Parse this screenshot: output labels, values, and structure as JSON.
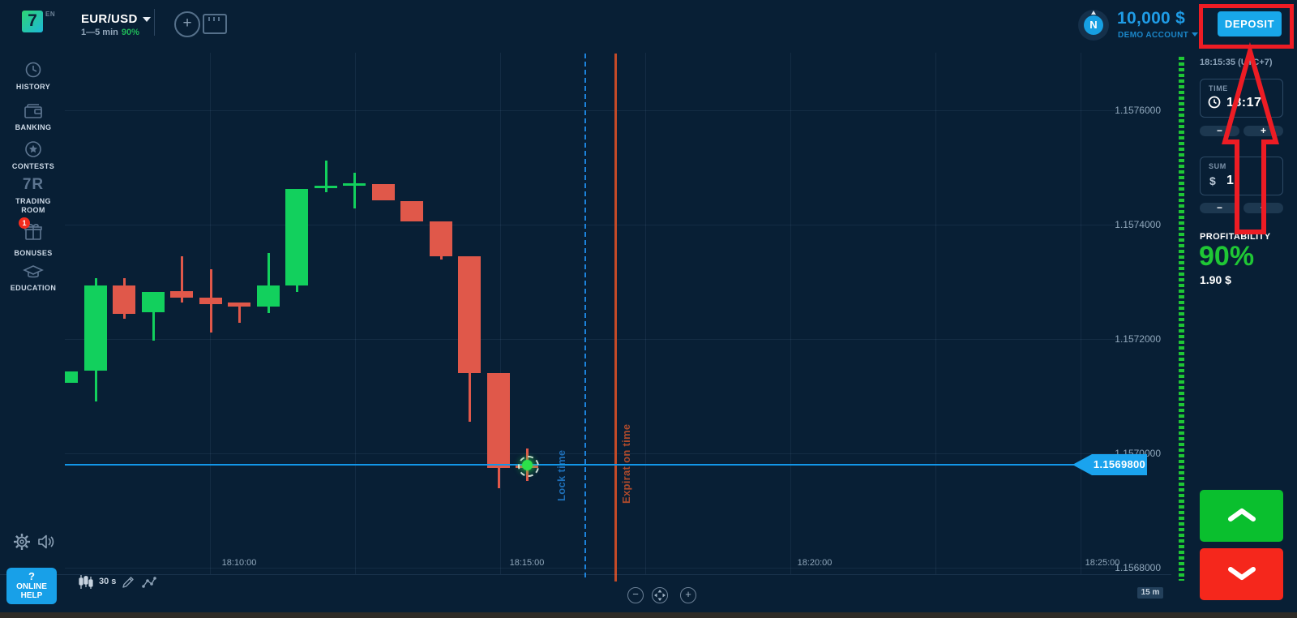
{
  "header": {
    "logo_letter": "7",
    "lang": "EN",
    "asset": {
      "pair": "EUR/USD",
      "duration": "1—5 min",
      "payout": "90%"
    },
    "balance": {
      "amount": "10,000 $",
      "account_type": "DEMO ACCOUNT",
      "avatar_letter": "N"
    },
    "deposit_label": "DEPOSIT"
  },
  "sidebar": {
    "items": [
      {
        "label": "HISTORY",
        "icon": "history-icon"
      },
      {
        "label": "BANKING",
        "icon": "wallet-icon"
      },
      {
        "label": "CONTESTS",
        "icon": "star-icon"
      },
      {
        "label": "TRADING ROOM",
        "icon": "7r-icon",
        "icon_text": "7R"
      },
      {
        "label": "BONUSES",
        "icon": "gift-icon",
        "badge": "1"
      },
      {
        "label": "EDUCATION",
        "icon": "graduation-cap-icon"
      }
    ]
  },
  "chart_ui": {
    "timeframe": "30 s",
    "range_badge": "15 m",
    "zoom_out": "−",
    "zoom_in": "+",
    "price_tag": "1.1569800"
  },
  "trade_panel": {
    "clock": "18:15:35 (UTC+7)",
    "time_label": "TIME",
    "time_value": "18:17",
    "sum_label": "SUM",
    "currency": "$",
    "sum_value": "1",
    "minus": "−",
    "plus": "+",
    "profitability_label": "PROFITABILITY",
    "profitability_value": "90%",
    "profit_amount": "1.90 $"
  },
  "help": {
    "question_mark": "?",
    "label": "ONLINE HELP"
  },
  "colors": {
    "background": "#081f35",
    "accent_blue": "#18a7ea",
    "balance_blue": "#1f9ce6",
    "profit_green": "#1fc735",
    "call_green": "#0abf2e",
    "put_red": "#f5271c",
    "candle_green": "#12d05d",
    "candle_red": "#e0584a",
    "lock_line_blue": "#1c83dc",
    "expiration_orange": "#c44a28",
    "annotation_red": "#ed1c24"
  },
  "chart_data": {
    "type": "candlestick",
    "symbol": "EUR/USD",
    "candle_interval": "30 s",
    "current_price": 1.15698,
    "current_price_text": "1.1569800",
    "marker_time": "18:15:00",
    "lock_label": "Lock time",
    "expiration_label": "Expiration time",
    "y_axis": {
      "labels": [
        "1.1576000",
        "1.1574000",
        "1.1572000",
        "1.1570000",
        "1.1568000"
      ],
      "min": 1.15672,
      "max": 1.1577
    },
    "x_axis": {
      "labels": [
        "18:10:00",
        "18:15:00",
        "18:20:00",
        "18:25:00"
      ]
    },
    "candles": [
      {
        "time": "18:07:00",
        "open": 1.1571234,
        "high": 1.1571433,
        "low": 1.1571234,
        "close": 1.1571433
      },
      {
        "time": "18:07:30",
        "open": 1.1571447,
        "high": 1.1573064,
        "low": 1.1570908,
        "close": 1.1572936
      },
      {
        "time": "18:08:00",
        "open": 1.1572936,
        "high": 1.1573064,
        "low": 1.1572355,
        "close": 1.157244
      },
      {
        "time": "18:08:30",
        "open": 1.1572468,
        "high": 1.1572823,
        "low": 1.1571972,
        "close": 1.1572823
      },
      {
        "time": "18:09:00",
        "open": 1.1572837,
        "high": 1.1573447,
        "low": 1.1572638,
        "close": 1.1572723
      },
      {
        "time": "18:09:30",
        "open": 1.1572723,
        "high": 1.157322,
        "low": 1.1572114,
        "close": 1.157261
      },
      {
        "time": "18:10:00",
        "open": 1.1572638,
        "high": 1.1572638,
        "low": 1.1572284,
        "close": 1.1572567
      },
      {
        "time": "18:10:30",
        "open": 1.1572567,
        "high": 1.1573504,
        "low": 1.1572454,
        "close": 1.1572936
      },
      {
        "time": "18:11:00",
        "open": 1.1572936,
        "high": 1.1574624,
        "low": 1.1572823,
        "close": 1.1574624
      },
      {
        "time": "18:11:30",
        "open": 1.1574638,
        "high": 1.1575121,
        "low": 1.1574567,
        "close": 1.1574681
      },
      {
        "time": "18:12:00",
        "open": 1.1574681,
        "high": 1.1574908,
        "low": 1.1574284,
        "close": 1.1574723
      },
      {
        "time": "18:12:30",
        "open": 1.1574709,
        "high": 1.1574709,
        "low": 1.1574426,
        "close": 1.1574426
      },
      {
        "time": "18:13:00",
        "open": 1.1574411,
        "high": 1.1574411,
        "low": 1.1574057,
        "close": 1.1574057
      },
      {
        "time": "18:13:30",
        "open": 1.1574057,
        "high": 1.1574057,
        "low": 1.157339,
        "close": 1.1573447
      },
      {
        "time": "18:14:00",
        "open": 1.1573447,
        "high": 1.1573447,
        "low": 1.1570553,
        "close": 1.1571404
      },
      {
        "time": "18:14:30",
        "open": 1.1571404,
        "high": 1.1571404,
        "low": 1.156939,
        "close": 1.1569745
      },
      {
        "time": "18:15:00",
        "open": 1.15698,
        "high": 1.1570085,
        "low": 1.1569518,
        "close": 1.1569745
      }
    ]
  }
}
